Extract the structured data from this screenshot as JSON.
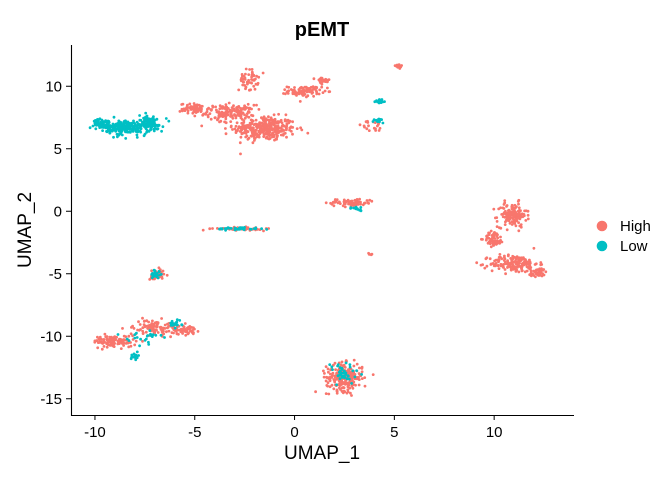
{
  "chart_data": {
    "type": "scatter",
    "title": "pEMT",
    "xlabel": "UMAP_1",
    "ylabel": "UMAP_2",
    "xlim": [
      -11.2,
      14.0
    ],
    "ylim": [
      -16.3,
      13.3
    ],
    "xticks": [
      -10,
      -5,
      0,
      5,
      10
    ],
    "yticks": [
      -15,
      -10,
      -5,
      0,
      5,
      10
    ],
    "grid": false,
    "legend": {
      "position": "right",
      "title": ""
    },
    "series": [
      {
        "name": "High",
        "color": "#F8766D",
        "clusters": [
          {
            "cx": -1.5,
            "cy": 6.6,
            "sx": 1.3,
            "sy": 0.8,
            "n": 320
          },
          {
            "cx": -3.2,
            "cy": 7.9,
            "sx": 1.0,
            "sy": 0.5,
            "n": 150
          },
          {
            "cx": -5.0,
            "cy": 8.2,
            "sx": 0.6,
            "sy": 0.35,
            "n": 70
          },
          {
            "cx": -2.3,
            "cy": 10.5,
            "sx": 0.4,
            "sy": 0.7,
            "n": 50
          },
          {
            "cx": 0.5,
            "cy": 9.6,
            "sx": 0.7,
            "sy": 0.35,
            "n": 90
          },
          {
            "cx": 1.4,
            "cy": 10.4,
            "sx": 0.3,
            "sy": 0.3,
            "n": 25
          },
          {
            "cx": 5.2,
            "cy": 11.6,
            "sx": 0.25,
            "sy": 0.2,
            "n": 12
          },
          {
            "cx": 3.9,
            "cy": 6.8,
            "sx": 0.8,
            "sy": 0.35,
            "n": 20
          },
          {
            "cx": 10.9,
            "cy": -0.3,
            "sx": 0.6,
            "sy": 0.8,
            "n": 140
          },
          {
            "cx": 11.0,
            "cy": -4.2,
            "sx": 1.0,
            "sy": 0.6,
            "n": 170
          },
          {
            "cx": 10.0,
            "cy": -2.2,
            "sx": 0.4,
            "sy": 0.5,
            "n": 60
          },
          {
            "cx": 12.2,
            "cy": -4.9,
            "sx": 0.4,
            "sy": 0.3,
            "n": 40
          },
          {
            "cx": 2.5,
            "cy": -13.3,
            "sx": 0.75,
            "sy": 0.9,
            "n": 240
          },
          {
            "cx": 2.8,
            "cy": 0.7,
            "sx": 1.0,
            "sy": 0.25,
            "n": 70
          },
          {
            "cx": -2.8,
            "cy": -1.4,
            "sx": 1.0,
            "sy": 0.1,
            "n": 60
          },
          {
            "cx": -6.9,
            "cy": -5.1,
            "sx": 0.3,
            "sy": 0.4,
            "n": 40
          },
          {
            "cx": -9.0,
            "cy": -10.4,
            "sx": 0.9,
            "sy": 0.4,
            "n": 110
          },
          {
            "cx": -7.0,
            "cy": -9.3,
            "sx": 0.9,
            "sy": 0.5,
            "n": 100
          },
          {
            "cx": -5.5,
            "cy": -9.5,
            "sx": 0.5,
            "sy": 0.3,
            "n": 50
          },
          {
            "cx": 3.8,
            "cy": -3.4,
            "sx": 0.08,
            "sy": 0.15,
            "n": 5
          }
        ]
      },
      {
        "name": "Low",
        "color": "#00BFC4",
        "clusters": [
          {
            "cx": -8.5,
            "cy": 6.7,
            "sx": 0.8,
            "sy": 0.5,
            "n": 200
          },
          {
            "cx": -7.3,
            "cy": 7.0,
            "sx": 0.6,
            "sy": 0.6,
            "n": 100
          },
          {
            "cx": -9.6,
            "cy": 7.0,
            "sx": 0.4,
            "sy": 0.3,
            "n": 60
          },
          {
            "cx": 4.3,
            "cy": 8.8,
            "sx": 0.2,
            "sy": 0.15,
            "n": 20
          },
          {
            "cx": 4.2,
            "cy": 7.3,
            "sx": 0.4,
            "sy": 0.2,
            "n": 12
          },
          {
            "cx": -2.8,
            "cy": -1.4,
            "sx": 0.9,
            "sy": 0.1,
            "n": 35
          },
          {
            "cx": 3.0,
            "cy": 0.2,
            "sx": 0.5,
            "sy": 0.15,
            "n": 15
          },
          {
            "cx": -6.9,
            "cy": -5.0,
            "sx": 0.25,
            "sy": 0.35,
            "n": 20
          },
          {
            "cx": -8.0,
            "cy": -11.6,
            "sx": 0.15,
            "sy": 0.2,
            "n": 20
          },
          {
            "cx": -7.5,
            "cy": -10.0,
            "sx": 0.7,
            "sy": 0.5,
            "n": 25
          },
          {
            "cx": -6.0,
            "cy": -9.0,
            "sx": 0.3,
            "sy": 0.2,
            "n": 18
          },
          {
            "cx": 2.4,
            "cy": -13.0,
            "sx": 0.7,
            "sy": 0.8,
            "n": 40
          }
        ]
      }
    ]
  }
}
